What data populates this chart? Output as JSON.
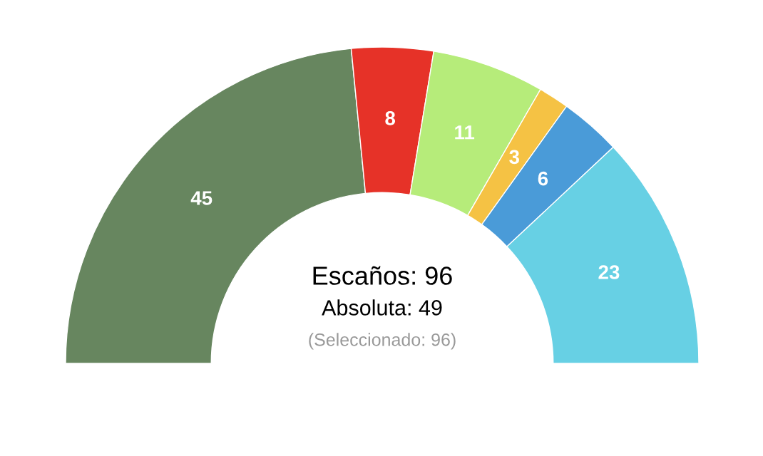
{
  "chart_data": {
    "type": "donut",
    "categories": [
      null,
      null,
      null,
      null,
      null,
      null
    ],
    "values": [
      45,
      8,
      11,
      3,
      6,
      23
    ],
    "colors": [
      "#67865f",
      "#e63228",
      "#b6ec7a",
      "#f5c244",
      "#4a9bd8",
      "#67d0e4"
    ],
    "data_labels": true,
    "annotations": [
      "Escaños: 96",
      "Absoluta: 49",
      "(Seleccionado: 96)"
    ]
  }
}
